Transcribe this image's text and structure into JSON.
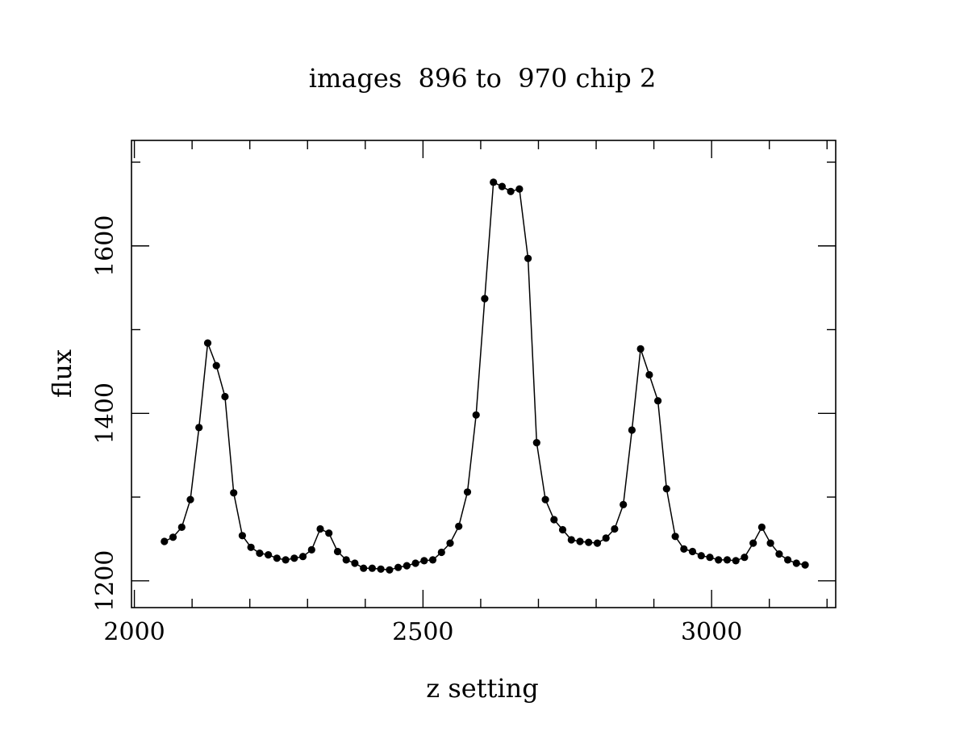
{
  "chart_data": {
    "type": "line",
    "title": "images  896 to  970 chip 2",
    "xlabel": "z setting",
    "ylabel": "flux",
    "xlim": [
      1995,
      3215
    ],
    "ylim": [
      1168,
      1726
    ],
    "x_ticks_major": [
      2000,
      2500,
      3000
    ],
    "x_ticks_minor": [
      2100,
      2200,
      2300,
      2400,
      2600,
      2700,
      2800,
      2900,
      3100,
      3200
    ],
    "y_ticks_major": [
      1200,
      1400,
      1600
    ],
    "y_ticks_minor": [
      1300,
      1500,
      1700
    ],
    "grid": false,
    "markers": true,
    "series": [
      {
        "x": [
          2052,
          2067,
          2082,
          2097,
          2112,
          2127,
          2142,
          2157,
          2172,
          2187,
          2202,
          2217,
          2232,
          2247,
          2262,
          2277,
          2292,
          2307,
          2322,
          2337,
          2352,
          2367,
          2382,
          2397,
          2412,
          2427,
          2442,
          2457,
          2472,
          2487,
          2502,
          2517,
          2532,
          2547,
          2562,
          2577,
          2592,
          2607,
          2622,
          2637,
          2652,
          2667,
          2682,
          2697,
          2712,
          2727,
          2742,
          2757,
          2772,
          2787,
          2802,
          2817,
          2832,
          2847,
          2862,
          2877,
          2892,
          2907,
          2922,
          2937,
          2952,
          2967,
          2982,
          2997,
          3012,
          3027,
          3042,
          3057,
          3072,
          3087,
          3102,
          3117,
          3132,
          3147,
          3162
        ],
        "y": [
          1247,
          1252,
          1264,
          1297,
          1383,
          1484,
          1457,
          1420,
          1305,
          1254,
          1240,
          1233,
          1231,
          1227,
          1225,
          1227,
          1229,
          1237,
          1262,
          1257,
          1235,
          1225,
          1221,
          1215,
          1215,
          1214,
          1213,
          1216,
          1218,
          1221,
          1224,
          1225,
          1234,
          1245,
          1265,
          1306,
          1398,
          1537,
          1676,
          1671,
          1665,
          1668,
          1585,
          1365,
          1297,
          1273,
          1261,
          1249,
          1247,
          1246,
          1245,
          1251,
          1262,
          1291,
          1380,
          1477,
          1446,
          1415,
          1310,
          1253,
          1238,
          1235,
          1230,
          1228,
          1225,
          1225,
          1224,
          1228,
          1245,
          1264,
          1245,
          1232,
          1225,
          1221,
          1219
        ]
      }
    ]
  }
}
